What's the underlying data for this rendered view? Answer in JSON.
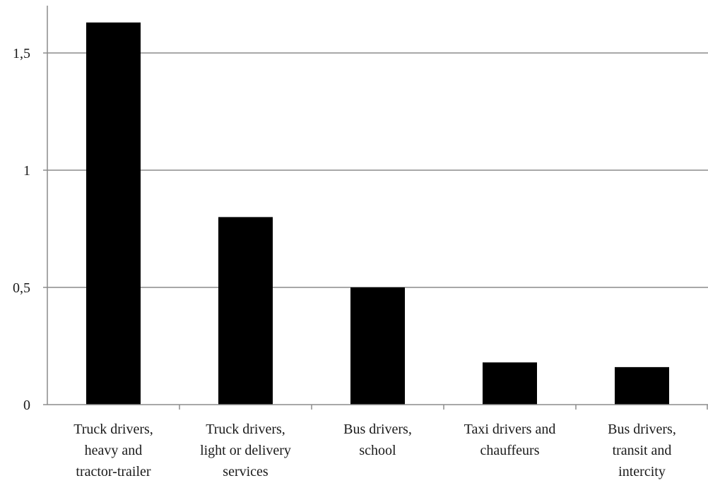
{
  "chart_data": {
    "type": "bar",
    "title": "",
    "xlabel": "",
    "ylabel": "",
    "categories": [
      [
        "Truck drivers,",
        "heavy and",
        "tractor-trailer"
      ],
      [
        "Truck drivers,",
        "light or delivery",
        "services"
      ],
      [
        "Bus drivers,",
        "school"
      ],
      [
        "Taxi drivers and",
        "chauffeurs"
      ],
      [
        "Bus drivers,",
        "transit and",
        "intercity"
      ]
    ],
    "values": [
      1.63,
      0.8,
      0.5,
      0.18,
      0.16
    ],
    "ylim": [
      0,
      1.7
    ],
    "yticks": [
      0,
      0.5,
      1,
      1.5
    ],
    "ytick_labels": [
      "0",
      "0,5",
      "1",
      "1,5"
    ],
    "grid": true,
    "bar_color": "#000000",
    "grid_color": "#8c8c8c"
  }
}
